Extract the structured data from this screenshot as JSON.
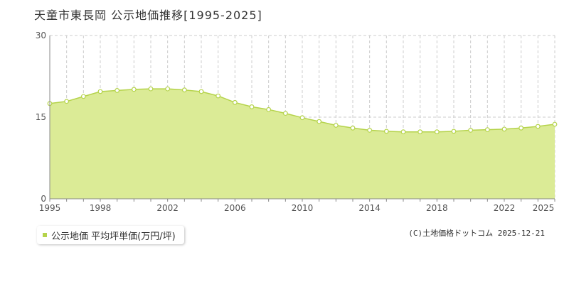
{
  "title": "天童市東長岡 公示地価推移[1995-2025]",
  "legend_label": "公示地価 平均坪単価(万円/坪)",
  "credit": "(C)土地価格ドットコム 2025-12-21",
  "colors": {
    "fill": "#dbeb96",
    "line": "#b5d34b",
    "marker_fill": "#ffffff",
    "grid": "#cccccc",
    "axis": "#888888"
  },
  "chart_data": {
    "type": "area",
    "title": "天童市東長岡 公示地価推移[1995-2025]",
    "xlabel": "",
    "ylabel": "",
    "x": [
      1995,
      1996,
      1997,
      1998,
      1999,
      2000,
      2001,
      2002,
      2003,
      2004,
      2005,
      2006,
      2007,
      2008,
      2009,
      2010,
      2011,
      2012,
      2013,
      2014,
      2015,
      2016,
      2017,
      2018,
      2019,
      2020,
      2021,
      2022,
      2023,
      2024,
      2025
    ],
    "series": [
      {
        "name": "公示地価 平均坪単価(万円/坪)",
        "values": [
          17.5,
          17.9,
          18.8,
          19.7,
          19.9,
          20.1,
          20.2,
          20.2,
          20.0,
          19.7,
          18.9,
          17.7,
          16.9,
          16.4,
          15.7,
          14.9,
          14.2,
          13.5,
          13.0,
          12.6,
          12.4,
          12.3,
          12.3,
          12.3,
          12.4,
          12.6,
          12.7,
          12.8,
          13.0,
          13.3,
          13.7
        ]
      }
    ],
    "ylim": [
      0,
      30
    ],
    "xlim": [
      1995,
      2025
    ],
    "y_ticks": [
      0,
      15,
      30
    ],
    "x_ticks": [
      1995,
      1998,
      2002,
      2006,
      2010,
      2014,
      2018,
      2022,
      2025
    ],
    "grid": true,
    "legend_position": "bottom-left"
  }
}
